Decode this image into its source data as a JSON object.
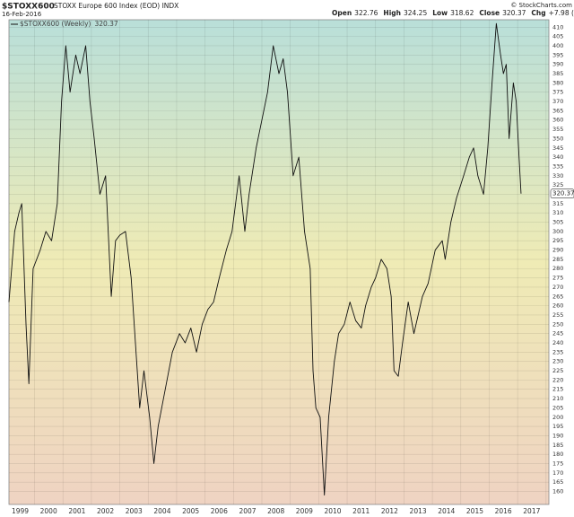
{
  "chart_data": {
    "type": "line",
    "title": "$STOXX600",
    "subtitle": "STOXX Europe 600 Index (EOD) INDX",
    "date": "16-Feb-2016",
    "credit": "© StockCharts.com",
    "quote": [
      {
        "label": "Open",
        "value": 322.76
      },
      {
        "label": "High",
        "value": 324.25
      },
      {
        "label": "Low",
        "value": 318.62
      },
      {
        "label": "Close",
        "value": 320.37
      },
      {
        "label": "Chg",
        "value": "+7.98 (+2.55%)"
      }
    ],
    "xlim": [
      1998.1,
      2017.1
    ],
    "xticks": [
      1999,
      2000,
      2001,
      2002,
      2003,
      2004,
      2005,
      2006,
      2007,
      2008,
      2009,
      2010,
      2011,
      2012,
      2013,
      2014,
      2015,
      2016,
      2017
    ],
    "ylim": [
      153,
      414
    ],
    "yticks": [
      160,
      165,
      170,
      175,
      180,
      185,
      190,
      195,
      200,
      205,
      210,
      215,
      220,
      225,
      230,
      235,
      240,
      245,
      250,
      255,
      260,
      265,
      270,
      275,
      280,
      285,
      290,
      295,
      300,
      305,
      310,
      315,
      320,
      325,
      330,
      335,
      340,
      345,
      350,
      355,
      360,
      365,
      370,
      375,
      380,
      385,
      390,
      395,
      400,
      405,
      410
    ],
    "grid": true,
    "x": [
      1998.1,
      1998.3,
      1998.45,
      1998.55,
      1998.7,
      1998.8,
      1998.95,
      1999.2,
      1999.4,
      1999.6,
      1999.8,
      1999.95,
      2000.1,
      2000.25,
      2000.45,
      2000.6,
      2000.8,
      2000.95,
      2001.1,
      2001.3,
      2001.5,
      2001.7,
      2001.85,
      2002.0,
      2002.2,
      2002.4,
      2002.55,
      2002.7,
      2002.85,
      2003.05,
      2003.2,
      2003.35,
      2003.6,
      2003.85,
      2004.1,
      2004.3,
      2004.5,
      2004.7,
      2004.9,
      2005.1,
      2005.3,
      2005.5,
      2005.75,
      2005.95,
      2006.2,
      2006.4,
      2006.55,
      2006.8,
      2007.0,
      2007.2,
      2007.4,
      2007.6,
      2007.75,
      2007.9,
      2008.1,
      2008.3,
      2008.5,
      2008.7,
      2008.8,
      2008.9,
      2009.05,
      2009.2,
      2009.35,
      2009.55,
      2009.7,
      2009.9,
      2010.1,
      2010.3,
      2010.5,
      2010.65,
      2010.85,
      2011.0,
      2011.2,
      2011.4,
      2011.55,
      2011.65,
      2011.8,
      2011.95,
      2012.15,
      2012.35,
      2012.5,
      2012.65,
      2012.85,
      2013.1,
      2013.35,
      2013.45,
      2013.65,
      2013.85,
      2014.1,
      2014.3,
      2014.45,
      2014.6,
      2014.8,
      2014.95,
      2015.1,
      2015.25,
      2015.4,
      2015.5,
      2015.6,
      2015.7,
      2015.85,
      2015.95,
      2016.05,
      2016.12
    ],
    "series": [
      {
        "name": "$STOXX600 (Weekly)",
        "color": "#111111",
        "values": [
          262,
          300,
          310,
          315,
          250,
          218,
          280,
          290,
          300,
          295,
          315,
          370,
          400,
          375,
          395,
          385,
          400,
          370,
          350,
          320,
          330,
          265,
          295,
          298,
          300,
          275,
          240,
          205,
          225,
          200,
          175,
          195,
          215,
          235,
          245,
          240,
          248,
          235,
          250,
          258,
          262,
          275,
          290,
          300,
          330,
          300,
          320,
          345,
          360,
          375,
          400,
          385,
          393,
          375,
          330,
          340,
          300,
          280,
          225,
          205,
          200,
          158,
          200,
          230,
          245,
          250,
          262,
          252,
          248,
          260,
          270,
          275,
          285,
          280,
          265,
          225,
          222,
          240,
          262,
          245,
          255,
          265,
          272,
          290,
          295,
          285,
          305,
          318,
          330,
          340,
          345,
          330,
          320,
          345,
          380,
          412,
          395,
          385,
          390,
          350,
          380,
          370,
          340,
          320.37
        ]
      }
    ]
  }
}
